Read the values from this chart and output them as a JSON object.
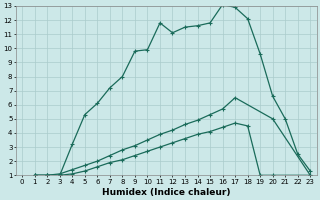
{
  "xlabel": "Humidex (Indice chaleur)",
  "background_color": "#cce8e8",
  "grid_color": "#aacccc",
  "line_color": "#1a6b5a",
  "xlim": [
    -0.5,
    23.5
  ],
  "ylim": [
    1,
    13
  ],
  "xticks": [
    0,
    1,
    2,
    3,
    4,
    5,
    6,
    7,
    8,
    9,
    10,
    11,
    12,
    13,
    14,
    15,
    16,
    17,
    18,
    19,
    20,
    21,
    22,
    23
  ],
  "yticks": [
    1,
    2,
    3,
    4,
    5,
    6,
    7,
    8,
    9,
    10,
    11,
    12,
    13
  ],
  "series1_x": [
    1,
    2,
    3,
    4,
    5,
    6,
    7,
    8,
    9,
    10,
    11,
    12,
    13,
    14,
    15,
    16,
    17,
    18,
    19,
    20,
    21,
    22,
    23
  ],
  "series1_y": [
    1,
    1,
    1,
    3.2,
    5.3,
    6.1,
    7.2,
    8.0,
    9.8,
    9.9,
    11.8,
    11.1,
    11.5,
    11.6,
    11.8,
    13.1,
    12.9,
    12.1,
    9.6,
    6.6,
    5.0,
    2.5,
    1.3
  ],
  "series2_x": [
    1,
    2,
    3,
    4,
    5,
    6,
    7,
    8,
    9,
    10,
    11,
    12,
    13,
    14,
    15,
    16,
    17,
    20,
    23
  ],
  "series2_y": [
    1,
    1,
    1.1,
    1.4,
    1.7,
    2.0,
    2.4,
    2.8,
    3.1,
    3.5,
    3.9,
    4.2,
    4.6,
    4.9,
    5.3,
    5.7,
    6.5,
    5.0,
    1.0
  ],
  "series3_x": [
    1,
    2,
    3,
    4,
    5,
    6,
    7,
    8,
    9,
    10,
    11,
    12,
    13,
    14,
    15,
    16,
    17,
    18,
    19,
    20,
    23
  ],
  "series3_y": [
    1,
    1,
    1,
    1.1,
    1.3,
    1.6,
    1.9,
    2.1,
    2.4,
    2.7,
    3.0,
    3.3,
    3.6,
    3.9,
    4.1,
    4.4,
    4.7,
    4.5,
    1.0,
    1.0,
    1.0
  ],
  "marker": "+",
  "markersize": 3,
  "linewidth": 0.9,
  "tick_fontsize": 5.0
}
